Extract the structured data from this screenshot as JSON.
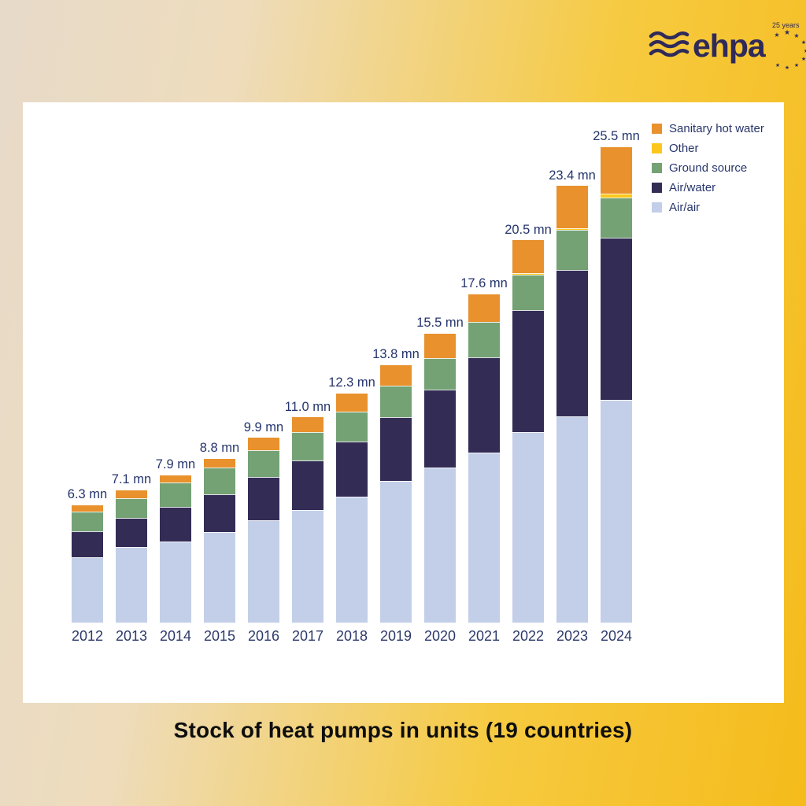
{
  "page": {
    "title": "Stock of heat pumps in units (19 countries)"
  },
  "logo": {
    "brand": "ehpa",
    "badge": "25 years",
    "color": "#2f2a5a"
  },
  "legend": [
    {
      "label": "Sanitary hot water",
      "color": "#e8912d"
    },
    {
      "label": "Other",
      "color": "#fbc71c"
    },
    {
      "label": "Ground source",
      "color": "#74a274"
    },
    {
      "label": "Air/water",
      "color": "#332d56"
    },
    {
      "label": "Air/air",
      "color": "#c3cfe9"
    }
  ],
  "chart_data": {
    "type": "bar",
    "stacked": true,
    "title": "Stock of heat pumps in units (19 countries)",
    "unit": "mn",
    "grid": false,
    "y_axis_visible": false,
    "legend_position": "top-right",
    "categories": [
      "2012",
      "2013",
      "2014",
      "2015",
      "2016",
      "2017",
      "2018",
      "2019",
      "2020",
      "2021",
      "2022",
      "2023",
      "2024"
    ],
    "series": [
      {
        "name": "Air/air",
        "color": "#c3cfe9",
        "values": [
          3.5,
          4.05,
          4.35,
          4.85,
          5.5,
          6.05,
          6.75,
          7.6,
          8.3,
          9.1,
          10.2,
          11.05,
          11.95
        ]
      },
      {
        "name": "Air/water",
        "color": "#332d56",
        "values": [
          1.4,
          1.55,
          1.85,
          2.05,
          2.3,
          2.65,
          2.95,
          3.4,
          4.2,
          5.1,
          6.55,
          7.85,
          8.7
        ]
      },
      {
        "name": "Ground source",
        "color": "#74a274",
        "values": [
          1.05,
          1.05,
          1.3,
          1.4,
          1.45,
          1.5,
          1.6,
          1.7,
          1.7,
          1.9,
          1.9,
          2.15,
          2.15
        ]
      },
      {
        "name": "Other",
        "color": "#fbc71c",
        "values": [
          0,
          0,
          0,
          0,
          0,
          0,
          0,
          0,
          0,
          0,
          0.1,
          0.1,
          0.2
        ]
      },
      {
        "name": "Sanitary hot water",
        "color": "#e8912d",
        "values": [
          0.35,
          0.45,
          0.4,
          0.5,
          0.65,
          0.8,
          1.0,
          1.1,
          1.3,
          1.5,
          1.75,
          2.25,
          2.5
        ]
      }
    ],
    "totals": [
      6.3,
      7.1,
      7.9,
      8.8,
      9.9,
      11.0,
      12.3,
      13.8,
      15.5,
      17.6,
      20.5,
      23.4,
      25.5
    ],
    "total_labels": [
      "6.3 mn",
      "7.1 mn",
      "7.9 mn",
      "8.8 mn",
      "9.9 mn",
      "11.0 mn",
      "12.3 mn",
      "13.8 mn",
      "15.5 mn",
      "17.6 mn",
      "20.5 mn",
      "23.4 mn",
      "25.5 mn"
    ]
  },
  "colors": {
    "background_left": "#e7dac9",
    "background_right": "#f5bb1b",
    "card": "#ffffff",
    "label_text": "#25356e",
    "title_text": "#0e0e0e"
  }
}
